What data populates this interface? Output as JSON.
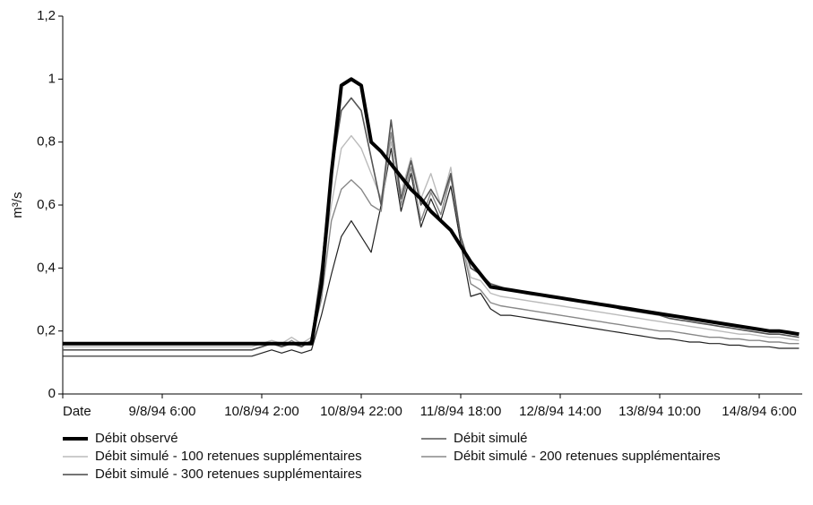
{
  "chart_data": {
    "type": "line",
    "y_label": "m³/s",
    "categories": [
      "Date",
      null,
      null,
      null,
      null,
      null,
      null,
      null,
      null,
      null,
      "9/8/94 6:00",
      null,
      null,
      null,
      null,
      null,
      null,
      null,
      null,
      null,
      "10/8/94 2:00",
      null,
      null,
      null,
      null,
      null,
      null,
      null,
      null,
      null,
      "10/8/94 22:00",
      null,
      null,
      null,
      null,
      null,
      null,
      null,
      null,
      null,
      "11/8/94 18:00",
      null,
      null,
      null,
      null,
      null,
      null,
      null,
      null,
      null,
      "12/8/94 14:00",
      null,
      null,
      null,
      null,
      null,
      null,
      null,
      null,
      null,
      "13/8/94 10:00",
      null,
      null,
      null,
      null,
      null,
      null,
      null,
      null,
      null,
      "14/8/94 6:00",
      null,
      null,
      null,
      null
    ],
    "ylim": [
      0,
      1.2
    ],
    "yticks": [
      0,
      {
        "value": 0.2,
        "label": "0,2"
      },
      {
        "value": 0.4,
        "label": "0,4"
      },
      {
        "value": 0.6,
        "label": "0,6"
      },
      {
        "value": 0.8,
        "label": "0,8"
      },
      1,
      {
        "value": 1.2,
        "label": "1,2"
      }
    ],
    "grid": false,
    "legend": "bottom",
    "series": [
      {
        "name": "Débit observé",
        "color": "#000000",
        "width": 4,
        "values": [
          0.16,
          0.16,
          0.16,
          0.16,
          0.16,
          0.16,
          0.16,
          0.16,
          0.16,
          0.16,
          0.16,
          0.16,
          0.16,
          0.16,
          0.16,
          0.16,
          0.16,
          0.16,
          0.16,
          0.16,
          0.16,
          0.16,
          0.16,
          0.16,
          0.16,
          0.16,
          0.35,
          0.7,
          0.98,
          1.0,
          0.98,
          0.8,
          0.77,
          0.73,
          0.69,
          0.65,
          0.62,
          0.58,
          0.55,
          0.52,
          0.47,
          0.42,
          0.38,
          0.34,
          0.335,
          0.33,
          0.325,
          0.32,
          0.315,
          0.31,
          0.305,
          0.3,
          0.295,
          0.29,
          0.285,
          0.28,
          0.275,
          0.27,
          0.265,
          0.26,
          0.255,
          0.25,
          0.245,
          0.24,
          0.235,
          0.23,
          0.225,
          0.22,
          0.215,
          0.21,
          0.205,
          0.2,
          0.2,
          0.195,
          0.19
        ]
      },
      {
        "name": "Débit simulé",
        "color": "#555555",
        "width": 1.6,
        "values": [
          0.14,
          0.14,
          0.14,
          0.14,
          0.14,
          0.14,
          0.14,
          0.14,
          0.14,
          0.14,
          0.14,
          0.14,
          0.14,
          0.14,
          0.14,
          0.14,
          0.14,
          0.14,
          0.14,
          0.14,
          0.15,
          0.16,
          0.15,
          0.16,
          0.15,
          0.17,
          0.4,
          0.7,
          0.9,
          0.94,
          0.9,
          0.75,
          0.6,
          0.87,
          0.62,
          0.74,
          0.6,
          0.65,
          0.6,
          0.7,
          0.5,
          0.4,
          0.38,
          0.35,
          0.34,
          0.33,
          0.325,
          0.32,
          0.315,
          0.31,
          0.305,
          0.3,
          0.295,
          0.29,
          0.285,
          0.28,
          0.27,
          0.265,
          0.26,
          0.255,
          0.25,
          0.24,
          0.235,
          0.23,
          0.225,
          0.22,
          0.215,
          0.21,
          0.205,
          0.2,
          0.195,
          0.19,
          0.19,
          0.185,
          0.18
        ]
      },
      {
        "name": "Débit simulé - 100 retenues supplémentaires",
        "color": "#bbbbbb",
        "width": 1.4,
        "values": [
          0.15,
          0.15,
          0.15,
          0.15,
          0.15,
          0.15,
          0.15,
          0.15,
          0.15,
          0.15,
          0.15,
          0.15,
          0.15,
          0.15,
          0.15,
          0.15,
          0.15,
          0.15,
          0.15,
          0.15,
          0.16,
          0.17,
          0.16,
          0.18,
          0.16,
          0.18,
          0.38,
          0.6,
          0.78,
          0.82,
          0.78,
          0.7,
          0.62,
          0.8,
          0.64,
          0.75,
          0.62,
          0.7,
          0.6,
          0.72,
          0.5,
          0.37,
          0.36,
          0.32,
          0.31,
          0.305,
          0.3,
          0.295,
          0.29,
          0.285,
          0.28,
          0.275,
          0.27,
          0.265,
          0.26,
          0.255,
          0.25,
          0.245,
          0.24,
          0.235,
          0.23,
          0.225,
          0.22,
          0.215,
          0.21,
          0.205,
          0.2,
          0.195,
          0.19,
          0.19,
          0.185,
          0.18,
          0.18,
          0.175,
          0.17
        ]
      },
      {
        "name": "Débit simulé - 200 retenues supplémentaires",
        "color": "#888888",
        "width": 1.4,
        "values": [
          0.14,
          0.14,
          0.14,
          0.14,
          0.14,
          0.14,
          0.14,
          0.14,
          0.14,
          0.14,
          0.14,
          0.14,
          0.14,
          0.14,
          0.14,
          0.14,
          0.14,
          0.14,
          0.14,
          0.14,
          0.15,
          0.16,
          0.15,
          0.17,
          0.15,
          0.17,
          0.3,
          0.55,
          0.65,
          0.68,
          0.65,
          0.6,
          0.58,
          0.83,
          0.6,
          0.72,
          0.55,
          0.64,
          0.57,
          0.69,
          0.5,
          0.35,
          0.33,
          0.29,
          0.28,
          0.275,
          0.27,
          0.265,
          0.26,
          0.255,
          0.25,
          0.245,
          0.24,
          0.235,
          0.23,
          0.225,
          0.22,
          0.215,
          0.21,
          0.205,
          0.2,
          0.2,
          0.195,
          0.19,
          0.185,
          0.18,
          0.18,
          0.175,
          0.175,
          0.17,
          0.17,
          0.165,
          0.165,
          0.16,
          0.16
        ]
      },
      {
        "name": "Débit simulé - 300 retenues supplémentaires",
        "color": "#222222",
        "width": 1.2,
        "values": [
          0.12,
          0.12,
          0.12,
          0.12,
          0.12,
          0.12,
          0.12,
          0.12,
          0.12,
          0.12,
          0.12,
          0.12,
          0.12,
          0.12,
          0.12,
          0.12,
          0.12,
          0.12,
          0.12,
          0.12,
          0.13,
          0.14,
          0.13,
          0.14,
          0.13,
          0.14,
          0.25,
          0.38,
          0.5,
          0.55,
          0.5,
          0.45,
          0.6,
          0.78,
          0.58,
          0.7,
          0.53,
          0.62,
          0.55,
          0.66,
          0.48,
          0.31,
          0.32,
          0.27,
          0.25,
          0.25,
          0.245,
          0.24,
          0.235,
          0.23,
          0.225,
          0.22,
          0.215,
          0.21,
          0.205,
          0.2,
          0.195,
          0.19,
          0.185,
          0.18,
          0.175,
          0.175,
          0.17,
          0.165,
          0.165,
          0.16,
          0.16,
          0.155,
          0.155,
          0.15,
          0.15,
          0.15,
          0.145,
          0.145,
          0.145
        ]
      }
    ]
  }
}
